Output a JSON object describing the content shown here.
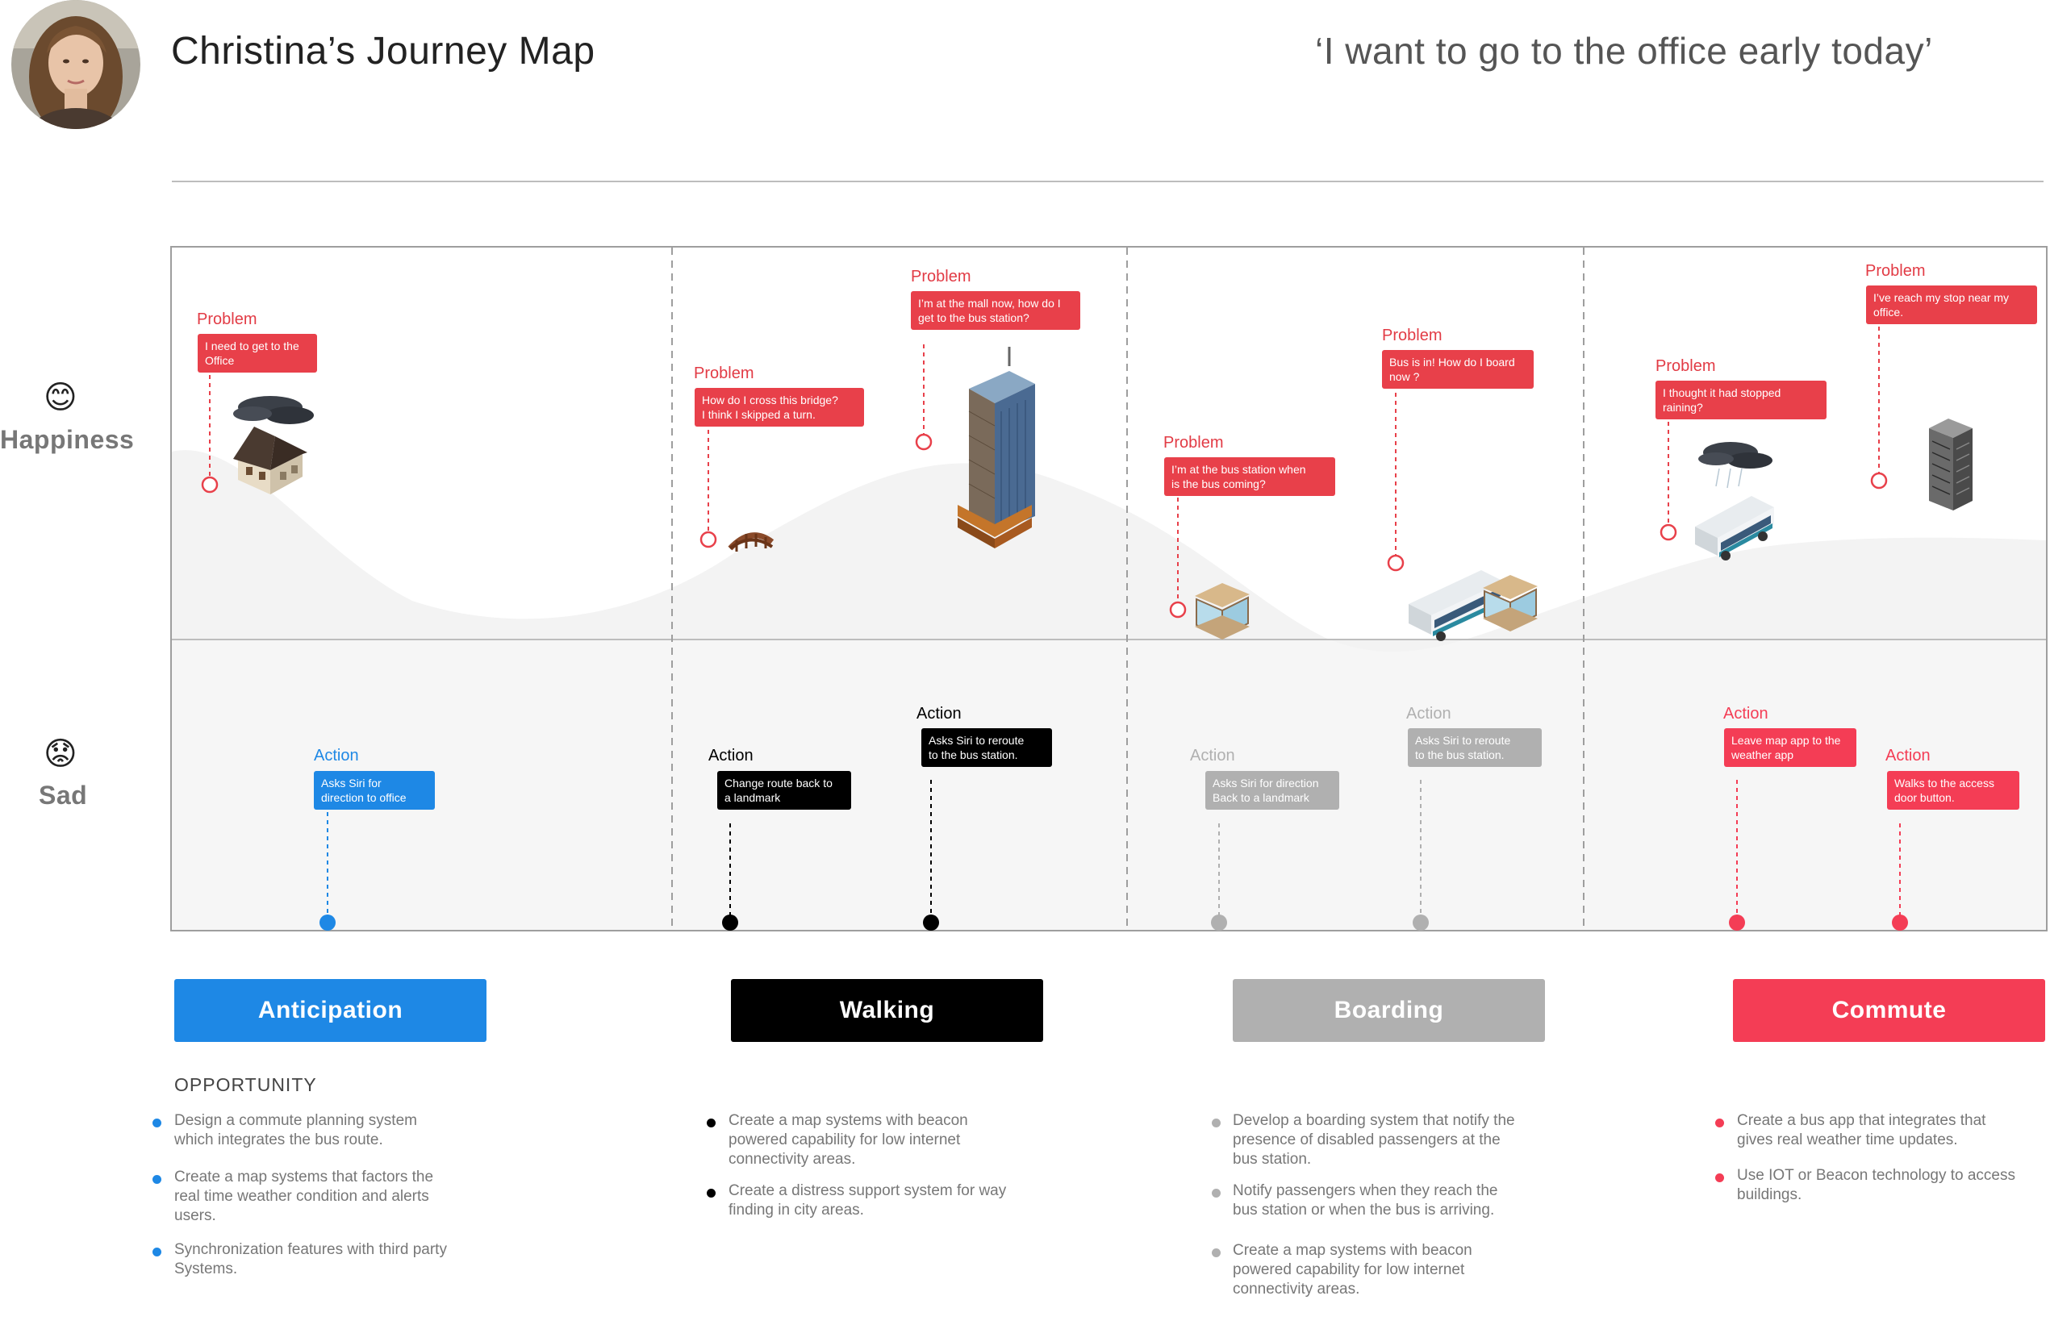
{
  "header": {
    "title": "Christina’s Journey Map",
    "quote": "‘I want to go to the office early today’"
  },
  "axis": {
    "happy_label": "Happiness",
    "sad_label": "Sad"
  },
  "colors": {
    "problem": "#e8404a",
    "anticipation": "#1e88e5",
    "walking": "#000000",
    "boarding": "#b0b0b0",
    "commute": "#f43d55"
  },
  "problems": [
    {
      "label": "Problem",
      "text": [
        "I need to get to the",
        "Office"
      ]
    },
    {
      "label": "Problem",
      "text": [
        "How do I cross this bridge?",
        "I think I skipped a turn."
      ]
    },
    {
      "label": "Problem",
      "text": [
        "I’m at the mall now, how do I",
        "get to the bus station?"
      ]
    },
    {
      "label": "Problem",
      "text": [
        "I’m at the bus station when",
        "is the bus coming?"
      ]
    },
    {
      "label": "Problem",
      "text": [
        "Bus is in! How do I board",
        "now ?"
      ]
    },
    {
      "label": "Problem",
      "text": [
        "I thought it had stopped",
        "raining?"
      ]
    },
    {
      "label": "Problem",
      "text": [
        "I’ve reach my stop near my",
        "office."
      ]
    }
  ],
  "actions": [
    {
      "label": "Action",
      "text": [
        "Asks Siri for",
        "direction to office"
      ]
    },
    {
      "label": "Action",
      "text": [
        "Change route back to",
        "a landmark"
      ]
    },
    {
      "label": "Action",
      "text": [
        "Asks Siri to reroute",
        "to the bus station."
      ]
    },
    {
      "label": "Action",
      "text": [
        "Asks Siri for direction",
        "Back to a landmark"
      ]
    },
    {
      "label": "Action",
      "text": [
        "Asks Siri to reroute",
        "to the bus station."
      ]
    },
    {
      "label": "Action",
      "text": [
        "Leave map app to the",
        "weather app"
      ]
    },
    {
      "label": "Action",
      "text": [
        "Walks to the access",
        "door button."
      ]
    }
  ],
  "icons": [
    "house-icon",
    "bridge-icon",
    "mall-tower-icon",
    "bus-shelter-icon",
    "bus-icon",
    "rainy-bus-icon",
    "office-building-icon"
  ],
  "phases": [
    {
      "label": "Anticipation"
    },
    {
      "label": "Walking"
    },
    {
      "label": "Boarding"
    },
    {
      "label": "Commute"
    }
  ],
  "opportunity": {
    "heading": "OPPORTUNITY",
    "columns": [
      [
        [
          "Design a commute planning system",
          "which integrates the bus route."
        ],
        [
          "Create a map systems that factors the",
          "real time weather condition and alerts",
          "users."
        ],
        [
          "Synchronization features with third party",
          "Systems."
        ]
      ],
      [
        [
          "Create a map systems with beacon",
          "powered capability for low internet",
          "connectivity areas."
        ],
        [
          "Create a distress support system for way",
          "finding in city areas."
        ]
      ],
      [
        [
          "Develop a boarding system that notify the",
          "presence of disabled passengers at the",
          "bus station."
        ],
        [
          "Notify passengers when they reach the",
          "bus station or when the bus is arriving."
        ],
        [
          "Create a map systems with beacon",
          "powered capability for low internet",
          "connectivity areas."
        ]
      ],
      [
        [
          "Create a bus app that integrates that",
          "gives real weather time updates."
        ],
        [
          "Use IOT or Beacon technology to access",
          "buildings."
        ]
      ]
    ]
  }
}
